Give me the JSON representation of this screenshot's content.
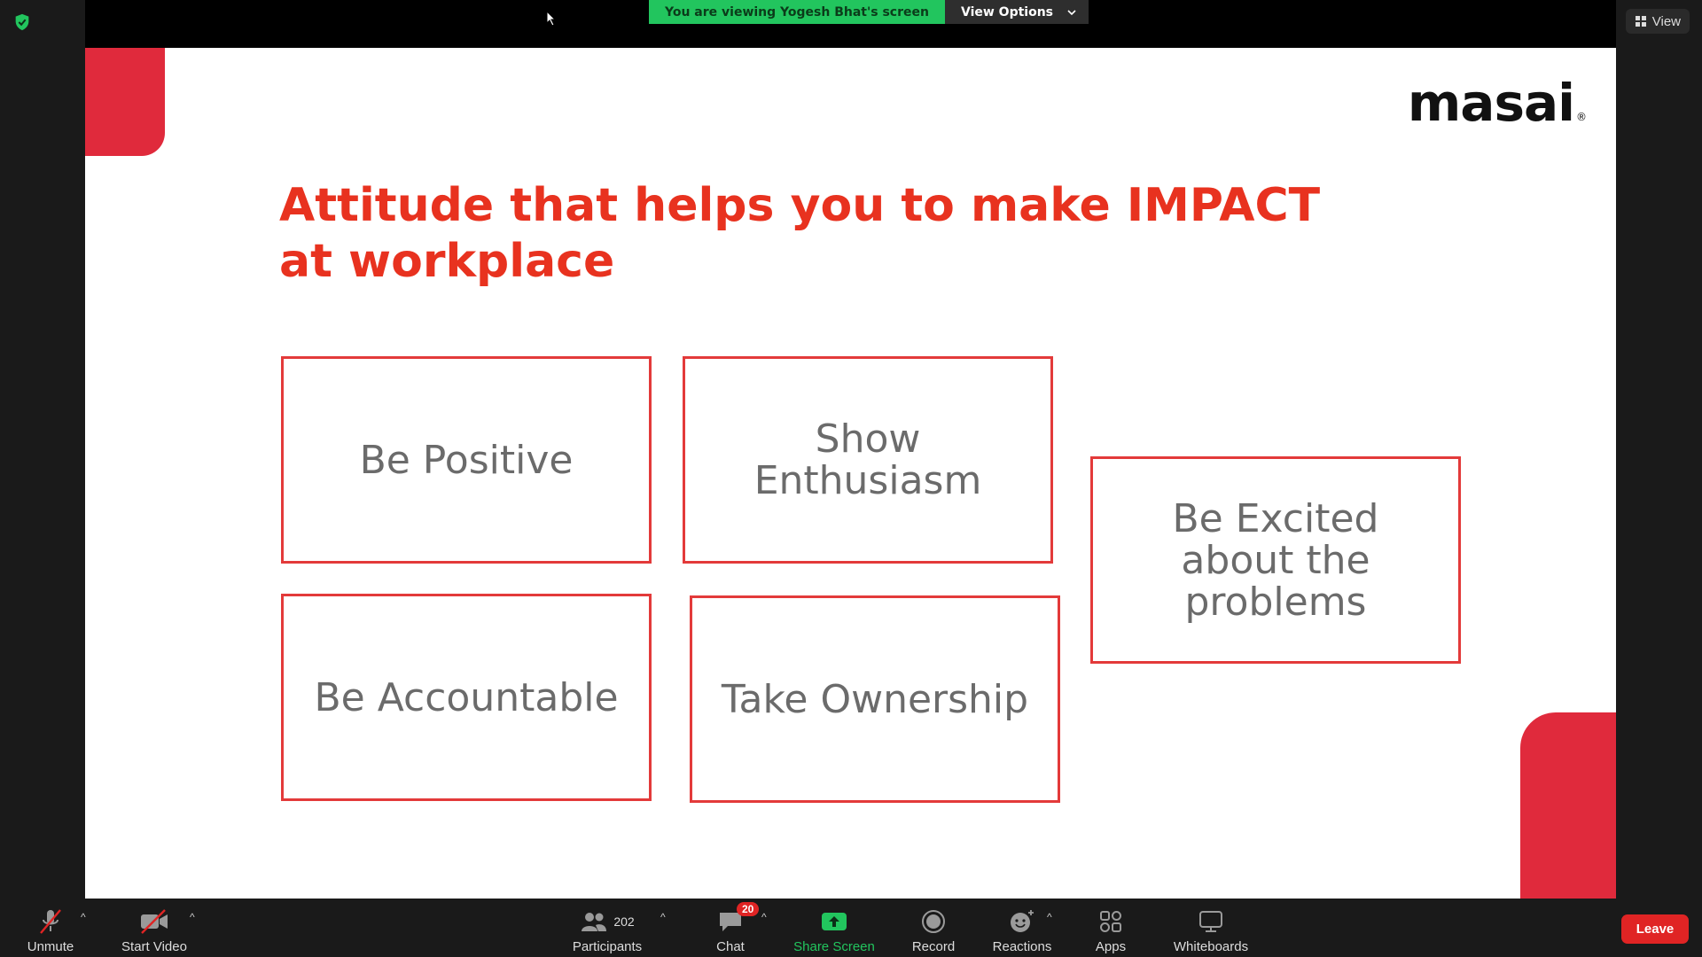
{
  "top_bar": {
    "viewing_banner": "You are viewing Yogesh Bhat's screen",
    "view_options_label": "View Options",
    "view_label": "View"
  },
  "slide": {
    "logo_text": "masai",
    "logo_reg": "®",
    "title": "Attitude that helps you to make IMPACT at workplace",
    "cards": [
      {
        "text": "Be Positive"
      },
      {
        "text": "Show Enthusiasm"
      },
      {
        "text": "Be Excited about the problems"
      },
      {
        "text": "Be Accountable"
      },
      {
        "text": "Take Ownership"
      }
    ],
    "accent_color": "#e02a3c",
    "title_color": "#e8321f"
  },
  "toolbar": {
    "unmute_label": "Unmute",
    "start_video_label": "Start Video",
    "participants_label": "Participants",
    "participants_count": "202",
    "chat_label": "Chat",
    "chat_badge": "20",
    "share_screen_label": "Share Screen",
    "record_label": "Record",
    "reactions_label": "Reactions",
    "apps_label": "Apps",
    "whiteboards_label": "Whiteboards",
    "leave_label": "Leave",
    "share_color": "#22c55e",
    "leave_color": "#e02424"
  }
}
